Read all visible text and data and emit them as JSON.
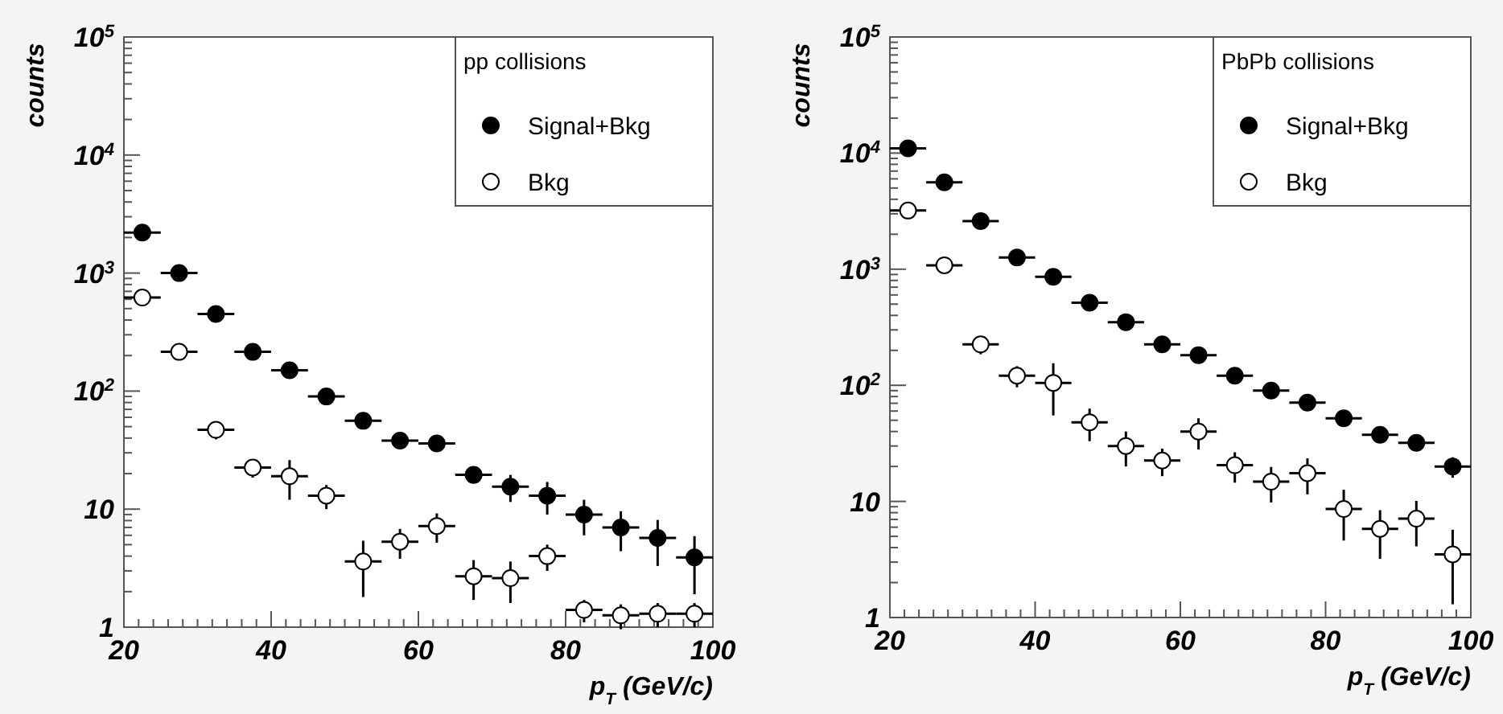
{
  "chart_data": [
    {
      "type": "scatter",
      "xlabel": "p$_{T}$ (GeV/c)",
      "ylabel": "counts",
      "legend_title": "pp collisions",
      "legend": "top right",
      "marker": "circle",
      "log": "y",
      "grid": false,
      "xlim": [
        20,
        100
      ],
      "xticks": [
        20,
        40,
        60,
        80,
        100
      ],
      "ylim": [
        1,
        100000
      ],
      "yticks": [
        {
          "value": 1,
          "label": "1"
        },
        {
          "value": 10,
          "label": "10"
        },
        {
          "value": 100,
          "label": "10$^{2}$"
        },
        {
          "value": 1000,
          "label": "10$^{3}$"
        },
        {
          "value": 10000,
          "label": "10$^{4}$"
        },
        {
          "value": 100000,
          "label": "10$^{5}$"
        }
      ],
      "x": [
        22.5,
        27.5,
        32.5,
        37.5,
        42.5,
        47.5,
        52.5,
        57.5,
        62.5,
        67.5,
        72.5,
        77.5,
        82.5,
        87.5,
        92.5,
        97.5
      ],
      "series": [
        {
          "name": "Signal+Bkg",
          "color": "#000000",
          "values": [
            2200,
            1000,
            450,
            215,
            150,
            90,
            56,
            38,
            36,
            19.5,
            15.5,
            13,
            9,
            7,
            5.7,
            3.9
          ],
          "errors": [
            null,
            null,
            null,
            null,
            null,
            null,
            null,
            null,
            null,
            3,
            4,
            4,
            3,
            2.6,
            2.4,
            2
          ],
          "xerrors": [
            2.5,
            2.5,
            2.5,
            2.5,
            2.5,
            2.5,
            2.5,
            2.5,
            2.5,
            2.5,
            2.5,
            2.5,
            2.5,
            2.5,
            2.5,
            2.5
          ]
        },
        {
          "name": "Bkg",
          "color": "#ffffff",
          "values": [
            620,
            215,
            47,
            22.5,
            19,
            13,
            3.6,
            5.3,
            7.2,
            2.7,
            2.6,
            4,
            1.4,
            1.26,
            1.3,
            1.3
          ],
          "errors": [
            null,
            null,
            8,
            4,
            7,
            3,
            1.8,
            1.5,
            2,
            1,
            1,
            1,
            0.3,
            0.3,
            0.3,
            0.3
          ],
          "xerrors": [
            2.5,
            2.5,
            2.5,
            2.5,
            2.5,
            2.5,
            2.5,
            2.5,
            2.5,
            2.5,
            2.5,
            2.5,
            2.5,
            2.5,
            2.5,
            2.5
          ]
        }
      ]
    },
    {
      "type": "scatter",
      "xlabel": "p$_{T}$ (GeV/c)",
      "ylabel": "counts",
      "legend_title": "PbPb collisions",
      "legend": "top right",
      "marker": "circle",
      "log": "y",
      "grid": false,
      "xlim": [
        20,
        100
      ],
      "xticks": [
        20,
        40,
        60,
        80,
        100
      ],
      "ylim": [
        1,
        100000
      ],
      "yticks": [
        1,
        10,
        {
          "value": 100,
          "label": "10$^{2}$"
        },
        {
          "value": 1000,
          "label": "10$^{3}$"
        },
        {
          "value": 10000,
          "label": "10$^{4}$"
        },
        {
          "value": 100000,
          "label": "10$^{5}$"
        }
      ],
      "x": [
        22.5,
        27.5,
        32.5,
        37.5,
        42.5,
        47.5,
        52.5,
        57.5,
        62.5,
        67.5,
        72.5,
        77.5,
        82.5,
        87.5,
        92.5,
        97.5
      ],
      "series": [
        {
          "name": "Signal+Bkg",
          "color": "#000000",
          "values": [
            11000,
            5600,
            2600,
            1260,
            860,
            515,
            350,
            225,
            182,
            121,
            90,
            71,
            52,
            37.5,
            32,
            20
          ],
          "errors": [
            null,
            null,
            null,
            null,
            null,
            null,
            null,
            null,
            null,
            null,
            null,
            null,
            null,
            4,
            4,
            4
          ],
          "xerrors": [
            2.5,
            2.5,
            2.5,
            2.5,
            2.5,
            2.5,
            2.5,
            2.5,
            2.5,
            2.5,
            2.5,
            2.5,
            2.5,
            2.5,
            2.5,
            2.5
          ]
        },
        {
          "name": "Bkg",
          "color": "#ffffff",
          "values": [
            3200,
            1080,
            225,
            121,
            105,
            48,
            30,
            22.5,
            40,
            20.5,
            14.8,
            17.5,
            8.6,
            5.8,
            7.1,
            3.5
          ],
          "errors": [
            null,
            null,
            40,
            25,
            50,
            15,
            10,
            6,
            12,
            6,
            5,
            6,
            4,
            2.6,
            3,
            2.2
          ],
          "xerrors": [
            2.5,
            2.5,
            2.5,
            2.5,
            2.5,
            2.5,
            2.5,
            2.5,
            2.5,
            2.5,
            2.5,
            2.5,
            2.5,
            2.5,
            2.5,
            2.5
          ]
        }
      ]
    }
  ]
}
